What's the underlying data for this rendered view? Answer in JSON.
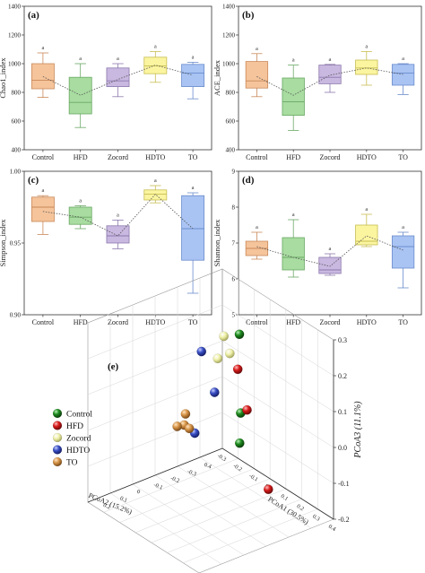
{
  "chart_data": [
    {
      "type": "box",
      "panel": "(a)",
      "ylabel": "Chao1_index",
      "ylim": [
        400,
        1400
      ],
      "yticks": [
        400,
        600,
        800,
        1000,
        1200,
        1400
      ],
      "categories": [
        "Control",
        "HFD",
        "Zocord",
        "HDTO",
        "TO"
      ],
      "boxes": [
        {
          "min": 765,
          "q1": 825,
          "median": 885,
          "q3": 1000,
          "max": 1075,
          "mean": 910
        },
        {
          "min": 555,
          "q1": 650,
          "median": 730,
          "q3": 905,
          "max": 1000,
          "mean": 780
        },
        {
          "min": 770,
          "q1": 840,
          "median": 880,
          "q3": 970,
          "max": 1000,
          "mean": 890
        },
        {
          "min": 870,
          "q1": 930,
          "median": 985,
          "q3": 1045,
          "max": 1085,
          "mean": 990
        },
        {
          "min": 755,
          "q1": 840,
          "median": 935,
          "q3": 995,
          "max": 1010,
          "mean": 920
        }
      ],
      "significance": [
        "a",
        "a",
        "a",
        "a",
        "a"
      ]
    },
    {
      "type": "box",
      "panel": "(b)",
      "ylabel": "ACE_index",
      "ylim": [
        400,
        1400
      ],
      "yticks": [
        400,
        600,
        800,
        1000,
        1200,
        1400
      ],
      "categories": [
        "Control",
        "HFD",
        "Zocord",
        "HDTO",
        "TO"
      ],
      "boxes": [
        {
          "min": 770,
          "q1": 830,
          "median": 880,
          "q3": 1015,
          "max": 1070,
          "mean": 910
        },
        {
          "min": 535,
          "q1": 640,
          "median": 735,
          "q3": 900,
          "max": 990,
          "mean": 780
        },
        {
          "min": 800,
          "q1": 860,
          "median": 905,
          "q3": 990,
          "max": 995,
          "mean": 920
        },
        {
          "min": 850,
          "q1": 925,
          "median": 970,
          "q3": 1025,
          "max": 1085,
          "mean": 970
        },
        {
          "min": 785,
          "q1": 850,
          "median": 935,
          "q3": 995,
          "max": 1000,
          "mean": 925
        }
      ],
      "significance": [
        "a",
        "a",
        "a",
        "a",
        "a"
      ]
    },
    {
      "type": "box",
      "panel": "(c)",
      "ylabel": "Simpson_index",
      "ylim": [
        0.9,
        1.0
      ],
      "yticks": [
        0.9,
        0.95,
        1.0
      ],
      "ytick_labels": [
        "0.90",
        "0.95",
        "1.00"
      ],
      "categories": [
        "Control",
        "HFD",
        "Zocord",
        "HDTO",
        "TO"
      ],
      "boxes": [
        {
          "min": 0.956,
          "q1": 0.965,
          "median": 0.975,
          "q3": 0.982,
          "max": 0.983,
          "mean": 0.972
        },
        {
          "min": 0.96,
          "q1": 0.963,
          "median": 0.968,
          "q3": 0.975,
          "max": 0.976,
          "mean": 0.968
        },
        {
          "min": 0.946,
          "q1": 0.95,
          "median": 0.955,
          "q3": 0.962,
          "max": 0.966,
          "mean": 0.955
        },
        {
          "min": 0.978,
          "q1": 0.98,
          "median": 0.984,
          "q3": 0.987,
          "max": 0.99,
          "mean": 0.984
        },
        {
          "min": 0.915,
          "q1": 0.938,
          "median": 0.96,
          "q3": 0.983,
          "max": 0.985,
          "mean": 0.96
        }
      ],
      "significance": [
        "a",
        "a",
        "a",
        "a",
        "a"
      ]
    },
    {
      "type": "box",
      "panel": "(d)",
      "ylabel": "Shannon_index",
      "ylim": [
        5,
        9
      ],
      "yticks": [
        5,
        6,
        7,
        8,
        9
      ],
      "categories": [
        "Control",
        "HFD",
        "Zocord",
        "HDTO",
        "TO"
      ],
      "boxes": [
        {
          "min": 6.55,
          "q1": 6.65,
          "median": 6.85,
          "q3": 7.05,
          "max": 7.3,
          "mean": 6.9
        },
        {
          "min": 6.05,
          "q1": 6.25,
          "median": 6.6,
          "q3": 7.15,
          "max": 7.65,
          "mean": 6.6
        },
        {
          "min": 6.1,
          "q1": 6.15,
          "median": 6.25,
          "q3": 6.6,
          "max": 6.7,
          "mean": 6.35
        },
        {
          "min": 6.9,
          "q1": 6.95,
          "median": 7.05,
          "q3": 7.5,
          "max": 7.8,
          "mean": 7.2
        },
        {
          "min": 5.75,
          "q1": 6.3,
          "median": 6.9,
          "q3": 7.2,
          "max": 7.3,
          "mean": 6.8
        }
      ],
      "significance": [
        "a",
        "a",
        "a",
        "a",
        "a"
      ]
    },
    {
      "type": "scatter3d",
      "panel": "(e)",
      "xlabel": "PCoA1 (30.5%)",
      "ylabel": "PCoA2 (15.2%)",
      "zlabel": "PCoA3 (11.1%)",
      "zlim": [
        -0.2,
        0.3
      ],
      "zticks": [
        -0.2,
        -0.1,
        0.0,
        0.1,
        0.2,
        0.3
      ],
      "xticks": [
        "-0.3",
        "-0.2",
        "-0.1",
        "0",
        "0.1",
        "0.2",
        "0.3",
        "0.4"
      ],
      "yticks": [
        "0.2",
        "0.1",
        "0",
        "-0.1",
        "-0.2",
        "-0.3",
        "0.4"
      ],
      "legend": [
        {
          "name": "Control",
          "color": "#1e8a1e"
        },
        {
          "name": "HFD",
          "color": "#d81b1b"
        },
        {
          "name": "Zocord",
          "color": "#eef0a8"
        },
        {
          "name": "HDTO",
          "color": "#3a4fc4"
        },
        {
          "name": "TO",
          "color": "#d9964a"
        }
      ],
      "groups": [
        {
          "name": "Control",
          "points": [
            [
              -0.08,
              -0.12,
              0.2
            ],
            [
              -0.1,
              -0.14,
              -0.03
            ],
            [
              -0.05,
              -0.1,
              -0.09
            ]
          ]
        },
        {
          "name": "HFD",
          "points": [
            [
              0.15,
              0.05,
              0.21
            ],
            [
              0.18,
              0.03,
              0.1
            ],
            [
              0.3,
              0.02,
              -0.09
            ]
          ]
        },
        {
          "name": "Zocord",
          "points": [
            [
              -0.15,
              -0.1,
              0.18
            ],
            [
              -0.14,
              -0.12,
              0.13
            ],
            [
              -0.16,
              -0.08,
              0.12
            ]
          ]
        },
        {
          "name": "HDTO",
          "points": [
            [
              -0.22,
              -0.05,
              0.13
            ],
            [
              -0.18,
              -0.08,
              0.02
            ],
            [
              -0.22,
              -0.02,
              -0.09
            ]
          ]
        },
        {
          "name": "TO",
          "points": [
            [
              -0.25,
              0.0,
              -0.04
            ],
            [
              -0.23,
              0.02,
              -0.06
            ],
            [
              -0.26,
              0.03,
              -0.07
            ],
            [
              -0.24,
              -0.01,
              -0.08
            ]
          ]
        }
      ]
    }
  ]
}
